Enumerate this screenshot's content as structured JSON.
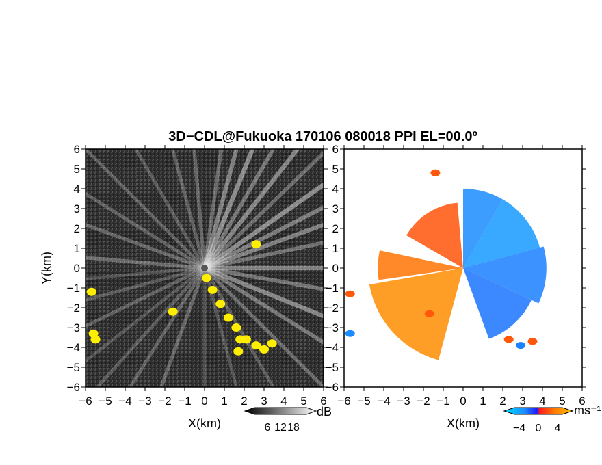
{
  "chart_data": [
    {
      "type": "heatmap",
      "title": "3D−CDL@Fukuoka 170106 080018 PPI EL=00.0º",
      "xlabel": "X(km)",
      "ylabel": "Y(km)",
      "xlim": [
        -6,
        6
      ],
      "ylim": [
        -6,
        6
      ],
      "xticks": [
        "−6",
        "−5",
        "−4",
        "−3",
        "−2",
        "−1",
        "0",
        "1",
        "2",
        "3",
        "4",
        "5",
        "6"
      ],
      "yticks": [
        "6",
        "5",
        "4",
        "3",
        "2",
        "1",
        "0",
        "−1",
        "−2",
        "−3",
        "−4",
        "−5",
        "−6"
      ],
      "background_color": "#2e2e2e",
      "beam_color": "#e8e8e8",
      "highlight_color": "#ffee00",
      "colorbar": {
        "unit": "dB",
        "ticks": [
          "6",
          "12",
          "18"
        ],
        "range": [
          0,
          24
        ],
        "colors": [
          "#000000",
          "#ffffff"
        ]
      },
      "beams": [
        {
          "azimuth": 8,
          "intensity": 0.6
        },
        {
          "azimuth": 15,
          "intensity": 0.8
        },
        {
          "azimuth": 22,
          "intensity": 0.9
        },
        {
          "azimuth": 30,
          "intensity": 0.7
        },
        {
          "azimuth": 38,
          "intensity": 0.85
        },
        {
          "azimuth": 46,
          "intensity": 0.6
        },
        {
          "azimuth": 55,
          "intensity": 0.9
        },
        {
          "azimuth": 63,
          "intensity": 0.75
        },
        {
          "azimuth": 70,
          "intensity": 0.8
        },
        {
          "azimuth": 78,
          "intensity": 0.65
        },
        {
          "azimuth": 90,
          "intensity": 0.8
        },
        {
          "azimuth": 100,
          "intensity": 0.7
        },
        {
          "azimuth": 112,
          "intensity": 0.85
        },
        {
          "azimuth": 122,
          "intensity": 0.7
        },
        {
          "azimuth": 135,
          "intensity": 0.6
        },
        {
          "azimuth": 150,
          "intensity": 0.45
        },
        {
          "azimuth": 165,
          "intensity": 0.4
        },
        {
          "azimuth": 180,
          "intensity": 0.35
        },
        {
          "azimuth": 200,
          "intensity": 0.55
        },
        {
          "azimuth": 212,
          "intensity": 0.5
        },
        {
          "azimuth": 222,
          "intensity": 0.45
        },
        {
          "azimuth": 232,
          "intensity": 0.4
        },
        {
          "azimuth": 244,
          "intensity": 0.5
        },
        {
          "azimuth": 255,
          "intensity": 0.45
        },
        {
          "azimuth": 265,
          "intensity": 0.4
        },
        {
          "azimuth": 275,
          "intensity": 0.6
        },
        {
          "azimuth": 290,
          "intensity": 0.55
        },
        {
          "azimuth": 302,
          "intensity": 0.5
        },
        {
          "azimuth": 315,
          "intensity": 0.5
        },
        {
          "azimuth": 330,
          "intensity": 0.45
        },
        {
          "azimuth": 345,
          "intensity": 0.5
        },
        {
          "azimuth": 355,
          "intensity": 0.55
        }
      ],
      "strong_echoes": [
        {
          "x": 0.1,
          "y": -0.5
        },
        {
          "x": 0.4,
          "y": -1.1
        },
        {
          "x": 0.8,
          "y": -1.8
        },
        {
          "x": 1.2,
          "y": -2.5
        },
        {
          "x": 1.6,
          "y": -3.0
        },
        {
          "x": 1.8,
          "y": -3.6
        },
        {
          "x": 1.7,
          "y": -4.2
        },
        {
          "x": 2.1,
          "y": -3.6
        },
        {
          "x": 2.6,
          "y": -3.9
        },
        {
          "x": 3.0,
          "y": -4.1
        },
        {
          "x": 3.4,
          "y": -3.8
        },
        {
          "x": -5.7,
          "y": -1.2
        },
        {
          "x": -5.6,
          "y": -3.3
        },
        {
          "x": -5.5,
          "y": -3.6
        },
        {
          "x": -1.6,
          "y": -2.2
        },
        {
          "x": 2.6,
          "y": 1.2
        }
      ]
    },
    {
      "type": "heatmap",
      "xlabel": "X(km)",
      "xlim": [
        -6,
        6
      ],
      "ylim": [
        -6,
        6
      ],
      "xticks": [
        "−6",
        "−5",
        "−4",
        "−3",
        "−2",
        "−1",
        "0",
        "1",
        "2",
        "3",
        "4",
        "5",
        "6"
      ],
      "yticks": [
        "6",
        "5",
        "4",
        "3",
        "2",
        "1",
        "0",
        "−1",
        "−2",
        "−3",
        "−4",
        "−5",
        "−6"
      ],
      "colorbar": {
        "unit": "ms⁻¹",
        "ticks": [
          "−4",
          "0",
          "4"
        ],
        "range": [
          -5,
          5
        ],
        "colors": [
          "#00e0ff",
          "#1a8cff",
          "#1a1aff",
          "#ff1a1a",
          "#ff8000",
          "#ffc000"
        ]
      },
      "velocity_sectors": [
        {
          "az_from": 195,
          "az_to": 260,
          "velocity": 3.0,
          "range_km": 4.8
        },
        {
          "az_from": 262,
          "az_to": 282,
          "velocity": 2.2,
          "range_km": 4.3
        },
        {
          "az_from": 300,
          "az_to": 355,
          "velocity": 1.5,
          "range_km": 3.3
        },
        {
          "az_from": 0,
          "az_to": 30,
          "velocity": -3.0,
          "range_km": 4.0
        },
        {
          "az_from": 30,
          "az_to": 75,
          "velocity": -3.3,
          "range_km": 4.0
        },
        {
          "az_from": 75,
          "az_to": 115,
          "velocity": -2.7,
          "range_km": 4.2
        },
        {
          "az_from": 115,
          "az_to": 160,
          "velocity": -2.4,
          "range_km": 3.8
        }
      ],
      "edge_echoes": [
        {
          "x": 2.3,
          "y": -3.6,
          "velocity": 1.6
        },
        {
          "x": 2.9,
          "y": -3.9,
          "velocity": -2.8
        },
        {
          "x": 3.5,
          "y": -3.7,
          "velocity": 1.6
        },
        {
          "x": -5.7,
          "y": -1.3,
          "velocity": 1.6
        },
        {
          "x": -5.7,
          "y": -3.3,
          "velocity": -3.0
        },
        {
          "x": -1.7,
          "y": -2.3,
          "velocity": 1.6
        },
        {
          "x": -1.4,
          "y": 4.8,
          "velocity": 1.6
        }
      ]
    }
  ]
}
